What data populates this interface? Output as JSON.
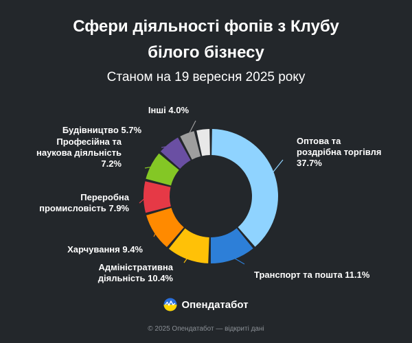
{
  "header": {
    "title_line1": "Сфери діяльності фопів з Клубу",
    "title_line2": "білого бізнесу",
    "subtitle": "Станом на 19 вересня 2025 року"
  },
  "chart_data": {
    "type": "pie",
    "variant": "donut",
    "unit": "%",
    "slices": [
      {
        "label_lines": [
          "Оптова та",
          "роздрібна торгівля",
          "37.7%"
        ],
        "value": 37.7,
        "color": "#8fd3ff"
      },
      {
        "label_lines": [
          "Транспорт та пошта 11.1%"
        ],
        "value": 11.1,
        "color": "#2d7fd8"
      },
      {
        "label_lines": [
          "Адміністративна",
          "діяльність 10.4%"
        ],
        "value": 10.4,
        "color": "#ffc107"
      },
      {
        "label_lines": [
          "Харчування 9.4%"
        ],
        "value": 9.4,
        "color": "#ff8a00"
      },
      {
        "label_lines": [
          "Переробна",
          "промисловість 7.9%"
        ],
        "value": 7.9,
        "color": "#e63946"
      },
      {
        "label_lines": [
          "Професійна та",
          "наукова діяльність",
          "7.2%"
        ],
        "value": 7.2,
        "color": "#84c725"
      },
      {
        "label_lines": [
          "Будівництво 5.7%"
        ],
        "value": 5.7,
        "color": "#6a4fa3"
      },
      {
        "label_lines": [
          "Інші 4.0%"
        ],
        "value": 4.0,
        "color": "#9e9e9e"
      },
      {
        "label_lines": [],
        "value": 3.6,
        "color": "#e8e8e8"
      }
    ]
  },
  "brand": {
    "name": "Опендатабот"
  },
  "footer": {
    "text": "© 2025 Опендатабот — відкриті дані"
  }
}
